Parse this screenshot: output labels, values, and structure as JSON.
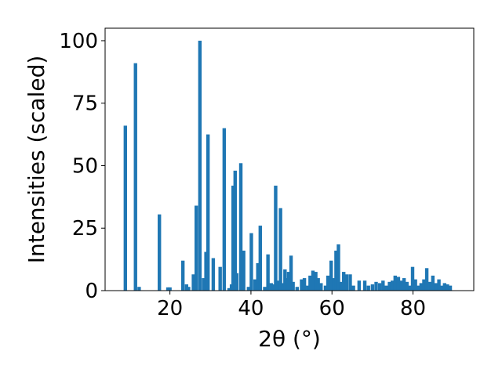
{
  "chart_data": {
    "type": "bar",
    "xlabel": "2θ (°)",
    "ylabel": "Intensities (scaled)",
    "xlim": [
      4.0,
      95.0
    ],
    "ylim": [
      0,
      105
    ],
    "xticks": [
      20,
      40,
      60,
      80
    ],
    "yticks": [
      0,
      25,
      50,
      75,
      100
    ],
    "grid": false,
    "bar_color": "#1f77b4",
    "x": [
      9.0,
      11.5,
      12.4,
      17.4,
      19.5,
      20.0,
      23.2,
      24.1,
      24.6,
      25.8,
      26.5,
      27.4,
      28.3,
      28.9,
      29.4,
      30.7,
      32.4,
      33.4,
      34.6,
      35.2,
      35.6,
      36.1,
      36.5,
      37.5,
      38.2,
      39.4,
      40.1,
      41.0,
      41.7,
      42.3,
      43.4,
      44.2,
      45.0,
      45.6,
      46.1,
      46.6,
      47.3,
      47.9,
      48.4,
      48.9,
      49.3,
      49.9,
      50.4,
      51.4,
      52.5,
      53.2,
      54.0,
      54.6,
      55.3,
      56.0,
      56.6,
      57.3,
      58.4,
      59.0,
      59.8,
      60.4,
      61.0,
      61.6,
      62.3,
      62.9,
      63.6,
      64.5,
      65.3,
      66.7,
      68.1,
      69.0,
      70.0,
      70.9,
      71.8,
      72.6,
      73.4,
      74.2,
      74.9,
      75.6,
      76.4,
      77.1,
      77.8,
      78.5,
      79.2,
      79.9,
      80.6,
      81.3,
      82.0,
      82.7,
      83.4,
      84.2,
      84.9,
      85.6,
      86.4,
      87.1,
      87.8,
      88.5,
      89.2
    ],
    "values": [
      66,
      91,
      1.5,
      30.5,
      1.3,
      1.3,
      12,
      2.5,
      1.5,
      6.5,
      34,
      100,
      5,
      15.5,
      62.5,
      13,
      9.5,
      65,
      1,
      2.5,
      42,
      48,
      7,
      51,
      16,
      1.5,
      23,
      4.5,
      11,
      26,
      1.5,
      14.5,
      3,
      2.5,
      42,
      4,
      33,
      3,
      8.5,
      5,
      7.5,
      14,
      3.5,
      1.5,
      4.5,
      5,
      2,
      6,
      8,
      7.5,
      5,
      3,
      2,
      6,
      12,
      5,
      16,
      18.5,
      3.5,
      7.5,
      6.5,
      6.5,
      2,
      4,
      4,
      2,
      2.5,
      3.5,
      3,
      4,
      2,
      3.5,
      4,
      6,
      5.5,
      4,
      5,
      3.5,
      2,
      9.5,
      4.5,
      2,
      3,
      4.5,
      9,
      3.5,
      6,
      3,
      4.5,
      2,
      3,
      2.5,
      2
    ]
  }
}
